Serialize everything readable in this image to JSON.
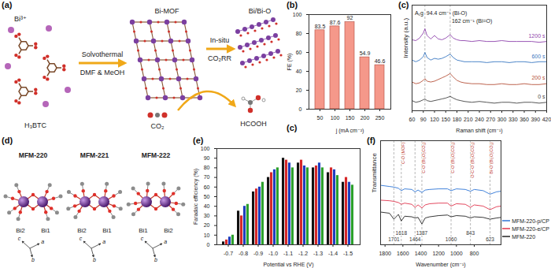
{
  "schematic": {
    "label": "(a)",
    "bi_ion": "Bi³⁺",
    "linker": "H₃BTC",
    "step1_top": "Solvothermal",
    "step1_bottom": "DMF & MeOH",
    "mof": "Bi-MOF",
    "step2_top": "In-situ",
    "step2_bottom": "CO₂RR",
    "catalyst": "Bi/Bi-O",
    "reactant": "CO₂",
    "product": "HCOOH"
  },
  "structures": {
    "label": "(d)",
    "items": [
      {
        "name": "MFM-220",
        "atoms": [
          "Bi2",
          "Bi1"
        ],
        "axes": [
          "a",
          "b",
          "c"
        ]
      },
      {
        "name": "MFM-221",
        "atoms": [
          "Bi2",
          "Bi1"
        ],
        "axes": [
          "a",
          "b",
          "c"
        ]
      },
      {
        "name": "MFM-222",
        "atoms": [
          "Bi1",
          "Bi2"
        ],
        "axes": [
          "a",
          "b",
          "c"
        ]
      }
    ]
  },
  "chart_data": [
    {
      "type": "bar",
      "title": "(b)",
      "categories": [
        "50",
        "100",
        "150",
        "200",
        "250"
      ],
      "values": [
        83.5,
        87.6,
        92,
        54.9,
        46.6
      ],
      "color": "#f5988a",
      "xlabel": "j (mA cm⁻²)",
      "ylabel": "FE (%)",
      "ylim": [
        0,
        100
      ],
      "yticks": [
        0,
        20,
        40,
        60,
        80,
        100
      ],
      "data_labels": true,
      "annotations": [
        {
          "text": "(c)"
        }
      ]
    },
    {
      "type": "line",
      "title": "(c)",
      "x": [
        60,
        70,
        80,
        90,
        94.4,
        100,
        110,
        120,
        130,
        140,
        150,
        162,
        170,
        180,
        190,
        200,
        220,
        240,
        260,
        280,
        300,
        320,
        340,
        360,
        380,
        400,
        420
      ],
      "series": [
        {
          "name": "0 s",
          "color": "#444444",
          "values": [
            1.2,
            1.0,
            1.1,
            1.3,
            1.4,
            1.2,
            1.1,
            1.2,
            1.3,
            1.4,
            1.5,
            1.7,
            1.5,
            1.3,
            1.2,
            1.1,
            1.0,
            1.1,
            1.0,
            0.9,
            1.0,
            1.0,
            0.9,
            1.0,
            1.0,
            0.9,
            1.0
          ]
        },
        {
          "name": "200 s",
          "color": "#b5523b",
          "values": [
            3.4,
            3.2,
            3.3,
            3.6,
            3.8,
            3.5,
            3.4,
            3.5,
            3.7,
            3.9,
            4.1,
            4.4,
            4.0,
            3.6,
            3.4,
            3.3,
            3.2,
            3.2,
            3.1,
            3.1,
            3.2,
            3.1,
            3.1,
            3.2,
            3.1,
            3.1,
            3.2
          ]
        },
        {
          "name": "600 s",
          "color": "#3a78c2",
          "values": [
            6.0,
            5.8,
            6.0,
            6.4,
            6.9,
            6.3,
            6.0,
            6.2,
            6.1,
            6.2,
            6.4,
            6.7,
            6.3,
            6.0,
            5.9,
            5.8,
            5.8,
            5.8,
            5.7,
            5.8,
            5.8,
            5.7,
            5.8,
            5.8,
            5.7,
            5.8,
            5.8
          ]
        },
        {
          "name": "1200 s",
          "color": "#8e44ad",
          "values": [
            8.4,
            8.3,
            8.6,
            9.2,
            9.7,
            8.9,
            8.5,
            8.9,
            8.5,
            8.4,
            8.6,
            9.0,
            8.6,
            8.4,
            8.3,
            8.3,
            8.2,
            8.3,
            8.2,
            8.2,
            8.3,
            8.2,
            8.2,
            8.2,
            8.2,
            8.1,
            8.2
          ]
        }
      ],
      "xlim": [
        60,
        420
      ],
      "xticks": [
        60,
        90,
        120,
        150,
        180,
        210,
        240,
        270,
        300,
        330,
        360,
        390,
        420
      ],
      "ylim": [
        0,
        12.5
      ],
      "yticks": [],
      "tick_labels": "x",
      "xlabel": "Raman shift (cm⁻¹)",
      "ylabel": "Intensity (a.u.)",
      "vlines": {
        "values": [
          94.4,
          162
        ],
        "line_style": "dashed"
      },
      "annotations": [
        {
          "x": 94.4,
          "text": "A₁g"
        },
        {
          "x": 94.4,
          "text": "94.4 cm⁻¹ (Bi-O)"
        },
        {
          "x": 162,
          "text": "162 cm⁻¹ (Bi=O)"
        }
      ]
    },
    {
      "type": "bar",
      "title": "(e)",
      "categories": [
        "-0.7",
        "-0.8",
        "-0.9",
        "-1.0",
        "-1.1",
        "-1.2",
        "-1.3",
        "-1.4",
        "-1.5"
      ],
      "series": [
        {
          "color": "#111111",
          "values": [
            3,
            35,
            55,
            70,
            90,
            85,
            80,
            75,
            65
          ]
        },
        {
          "color": "#d62728",
          "values": [
            5,
            30,
            58,
            75,
            88,
            88,
            82,
            80,
            70
          ]
        },
        {
          "color": "#1f3fbf",
          "values": [
            8,
            40,
            60,
            78,
            85,
            82,
            85,
            78,
            65
          ]
        },
        {
          "color": "#2ca02c",
          "values": [
            10,
            42,
            65,
            80,
            80,
            80,
            80,
            72,
            62
          ]
        }
      ],
      "xlabel": "Potential vs RHE (V)",
      "ylabel": "Faradaic efficiency (%)",
      "ylim": [
        0,
        100
      ],
      "yticks": [
        0,
        10,
        20,
        30,
        40,
        50,
        60,
        70,
        80,
        90,
        100
      ]
    },
    {
      "type": "line",
      "title": "(f)",
      "x": [
        1850,
        1750,
        1701,
        1650,
        1618,
        1580,
        1500,
        1464,
        1430,
        1387,
        1350,
        1300,
        1200,
        1100,
        1060,
        1000,
        900,
        843,
        800,
        700,
        623,
        550,
        500
      ],
      "series": [
        {
          "name": "MFM-220-p/CP",
          "color": "#2e75d6",
          "values": [
            8.5,
            8.3,
            8.2,
            8.0,
            7.6,
            7.9,
            7.8,
            7.4,
            7.7,
            7.3,
            7.7,
            7.8,
            7.9,
            7.9,
            7.6,
            7.9,
            7.8,
            7.5,
            7.8,
            7.6,
            7.0,
            7.4,
            7.5
          ]
        },
        {
          "name": "MFM-220-e/CP",
          "color": "#e0344d",
          "values": [
            6.0,
            5.9,
            5.8,
            5.6,
            5.3,
            5.5,
            5.3,
            4.8,
            5.2,
            4.7,
            5.2,
            5.4,
            5.5,
            5.5,
            5.0,
            5.4,
            5.3,
            4.8,
            5.2,
            5.0,
            4.4,
            4.9,
            5.0
          ]
        },
        {
          "name": "MFM-220",
          "color": "#222222",
          "values": [
            4.0,
            3.8,
            2.8,
            3.6,
            2.5,
            3.3,
            3.2,
            3.0,
            3.1,
            2.0,
            3.0,
            3.2,
            3.4,
            3.5,
            3.2,
            3.4,
            3.3,
            3.0,
            3.2,
            3.1,
            2.8,
            3.0,
            3.1
          ]
        }
      ],
      "xlim": [
        1850,
        500
      ],
      "xticks": [
        1800,
        1600,
        1400,
        1200,
        1000,
        800
      ],
      "ylim": [
        -1.5,
        16
      ],
      "yticks": [],
      "tick_labels": "x",
      "xlabel": "Wavenumber (cm⁻¹)",
      "ylabel": "Transmittance",
      "legend": "bottom-right",
      "vlines": {
        "values": [
          1701,
          1618,
          1464,
          1387,
          1060,
          843,
          623
        ],
        "line_style": "dashed"
      },
      "peak_labels": [
        {
          "x": 1701,
          "text": "1701"
        },
        {
          "x": 1618,
          "text": "1618"
        },
        {
          "x": 1464,
          "text": "1464"
        },
        {
          "x": 1387,
          "text": "1387"
        },
        {
          "x": 1060,
          "text": "1060"
        },
        {
          "x": 843,
          "text": "843"
        },
        {
          "x": 623,
          "text": "623"
        }
      ],
      "band_labels": [
        {
          "x": 1618,
          "text": "C-O (MOF)"
        },
        {
          "x": 1387,
          "text": "C-O (Bi₂O₂CO₃)"
        },
        {
          "x": 1060,
          "text": "C-O (Bi₂O₂CO₃)"
        },
        {
          "x": 843,
          "text": "O-C-O (Bi₂O₂CO₃)"
        },
        {
          "x": 623,
          "text": "Bi-O (Bi₂O₂CO₃)"
        }
      ]
    }
  ]
}
